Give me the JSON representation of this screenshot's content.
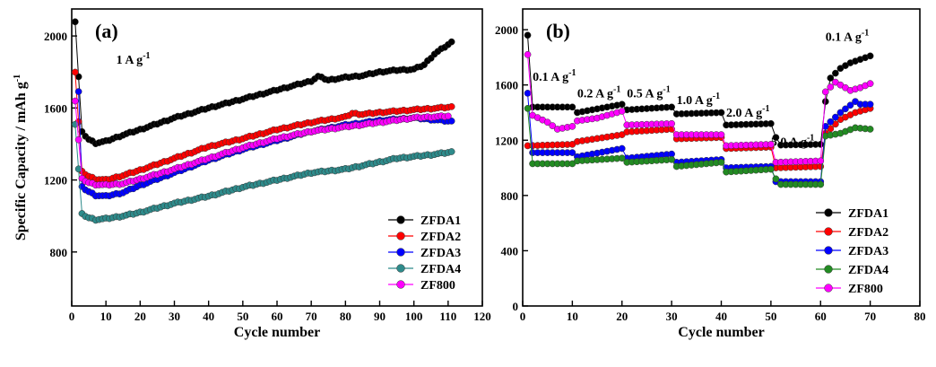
{
  "chart_data": [
    {
      "type": "scatter",
      "panel_label": "(a)",
      "xlabel": "Cycle number",
      "ylabel": "Specific Capacity / mAh g",
      "ylabel_sup": "-1",
      "xlim": [
        0,
        120
      ],
      "ylim": [
        500,
        2150
      ],
      "xticks": [
        0,
        10,
        20,
        30,
        40,
        50,
        60,
        70,
        80,
        90,
        100,
        110,
        120
      ],
      "yticks": [
        800,
        1200,
        1600,
        2000
      ],
      "annotations": [
        {
          "text": "1 A g",
          "sup": "-1",
          "x": 13,
          "y": 1845
        }
      ],
      "legend_position": "bottom-right",
      "series": [
        {
          "name": "ZFDA1",
          "color": "#000000",
          "points": [
            [
              1,
              2080
            ],
            [
              3,
              1465
            ],
            [
              5,
              1425
            ],
            [
              7,
              1405
            ],
            [
              10,
              1415
            ],
            [
              15,
              1450
            ],
            [
              20,
              1480
            ],
            [
              30,
              1545
            ],
            [
              40,
              1600
            ],
            [
              50,
              1650
            ],
            [
              60,
              1700
            ],
            [
              70,
              1750
            ],
            [
              72,
              1775
            ],
            [
              75,
              1755
            ],
            [
              80,
              1770
            ],
            [
              85,
              1780
            ],
            [
              90,
              1800
            ],
            [
              95,
              1810
            ],
            [
              100,
              1815
            ],
            [
              103,
              1840
            ],
            [
              106,
              1900
            ],
            [
              111,
              1965
            ]
          ]
        },
        {
          "name": "ZFDA2",
          "color": "#ff0000",
          "points": [
            [
              1,
              1800
            ],
            [
              3,
              1245
            ],
            [
              5,
              1220
            ],
            [
              7,
              1205
            ],
            [
              10,
              1200
            ],
            [
              15,
              1225
            ],
            [
              20,
              1255
            ],
            [
              30,
              1320
            ],
            [
              40,
              1385
            ],
            [
              50,
              1430
            ],
            [
              60,
              1480
            ],
            [
              70,
              1520
            ],
            [
              80,
              1550
            ],
            [
              82,
              1570
            ],
            [
              85,
              1565
            ],
            [
              90,
              1575
            ],
            [
              100,
              1590
            ],
            [
              111,
              1605
            ]
          ]
        },
        {
          "name": "ZFDA3",
          "color": "#0000ff",
          "points": [
            [
              2,
              1690
            ],
            [
              3,
              1160
            ],
            [
              5,
              1135
            ],
            [
              7,
              1115
            ],
            [
              10,
              1110
            ],
            [
              15,
              1130
            ],
            [
              20,
              1170
            ],
            [
              30,
              1240
            ],
            [
              40,
              1310
            ],
            [
              50,
              1370
            ],
            [
              60,
              1420
            ],
            [
              70,
              1470
            ],
            [
              80,
              1505
            ],
            [
              90,
              1530
            ],
            [
              100,
              1545
            ],
            [
              111,
              1525
            ]
          ]
        },
        {
          "name": "ZFDA4",
          "color": "#2e8b8b",
          "points": [
            [
              1,
              1510
            ],
            [
              3,
              1010
            ],
            [
              5,
              990
            ],
            [
              7,
              980
            ],
            [
              10,
              985
            ],
            [
              15,
              1000
            ],
            [
              20,
              1020
            ],
            [
              30,
              1070
            ],
            [
              40,
              1110
            ],
            [
              50,
              1160
            ],
            [
              60,
              1200
            ],
            [
              70,
              1240
            ],
            [
              80,
              1260
            ],
            [
              85,
              1280
            ],
            [
              90,
              1300
            ],
            [
              95,
              1320
            ],
            [
              100,
              1330
            ],
            [
              105,
              1340
            ],
            [
              111,
              1355
            ]
          ]
        },
        {
          "name": "ZF800",
          "color": "#ff00ff",
          "points": [
            [
              1,
              1640
            ],
            [
              3,
              1205
            ],
            [
              5,
              1185
            ],
            [
              7,
              1175
            ],
            [
              10,
              1172
            ],
            [
              15,
              1180
            ],
            [
              20,
              1205
            ],
            [
              30,
              1260
            ],
            [
              40,
              1320
            ],
            [
              50,
              1380
            ],
            [
              60,
              1430
            ],
            [
              70,
              1470
            ],
            [
              80,
              1495
            ],
            [
              90,
              1520
            ],
            [
              100,
              1545
            ],
            [
              110,
              1555
            ]
          ]
        }
      ]
    },
    {
      "type": "scatter",
      "panel_label": "(b)",
      "xlabel": "Cycle number",
      "xlim": [
        0,
        80
      ],
      "ylim": [
        0,
        2150
      ],
      "xticks": [
        0,
        10,
        20,
        30,
        40,
        50,
        60,
        70,
        80
      ],
      "yticks": [
        0,
        400,
        800,
        1200,
        1600,
        2000
      ],
      "annotations": [
        {
          "text": "0.1 A g",
          "sup": "-1",
          "x": 2,
          "y": 1630
        },
        {
          "text": "0.2 A g",
          "sup": "-1",
          "x": 11,
          "y": 1510
        },
        {
          "text": "0.5 A g",
          "sup": "-1",
          "x": 21,
          "y": 1510
        },
        {
          "text": "1.0 A g",
          "sup": "-1",
          "x": 31,
          "y": 1460
        },
        {
          "text": "2.0 A g",
          "sup": "-1",
          "x": 41,
          "y": 1370
        },
        {
          "text": "5.0 A g",
          "sup": "-1",
          "x": 50,
          "y": 1160
        },
        {
          "text": "0.1 A g",
          "sup": "-1",
          "x": 61,
          "y": 1920
        }
      ],
      "legend_position": "bottom-right",
      "series": [
        {
          "name": "ZFDA1",
          "color": "#000000",
          "steps": [
            [
              1,
              1960
            ],
            [
              2,
              1440
            ],
            [
              10,
              1440
            ],
            [
              11,
              1400
            ],
            [
              20,
              1460
            ],
            [
              21,
              1420
            ],
            [
              30,
              1440
            ],
            [
              31,
              1390
            ],
            [
              40,
              1400
            ],
            [
              41,
              1310
            ],
            [
              50,
              1320
            ],
            [
              51,
              1220
            ],
            [
              52,
              1165
            ],
            [
              60,
              1170
            ],
            [
              61,
              1480
            ],
            [
              62,
              1650
            ],
            [
              64,
              1720
            ],
            [
              66,
              1760
            ],
            [
              70,
              1810
            ]
          ]
        },
        {
          "name": "ZFDA2",
          "color": "#ff0000",
          "steps": [
            [
              1,
              1160
            ],
            [
              10,
              1170
            ],
            [
              11,
              1190
            ],
            [
              20,
              1240
            ],
            [
              21,
              1260
            ],
            [
              30,
              1280
            ],
            [
              31,
              1210
            ],
            [
              40,
              1220
            ],
            [
              41,
              1140
            ],
            [
              50,
              1150
            ],
            [
              51,
              1000
            ],
            [
              60,
              1010
            ],
            [
              61,
              1250
            ],
            [
              64,
              1350
            ],
            [
              67,
              1400
            ],
            [
              70,
              1430
            ]
          ]
        },
        {
          "name": "ZFDA3",
          "color": "#0000ff",
          "steps": [
            [
              1,
              1540
            ],
            [
              2,
              1110
            ],
            [
              10,
              1110
            ],
            [
              11,
              1080
            ],
            [
              20,
              1140
            ],
            [
              21,
              1070
            ],
            [
              30,
              1100
            ],
            [
              31,
              1040
            ],
            [
              40,
              1060
            ],
            [
              41,
              1000
            ],
            [
              50,
              1010
            ],
            [
              51,
              900
            ],
            [
              60,
              900
            ],
            [
              61,
              1300
            ],
            [
              64,
              1400
            ],
            [
              67,
              1480
            ],
            [
              68,
              1460
            ],
            [
              70,
              1460
            ]
          ]
        },
        {
          "name": "ZFDA4",
          "color": "#228b22",
          "steps": [
            [
              1,
              1430
            ],
            [
              2,
              1030
            ],
            [
              10,
              1030
            ],
            [
              11,
              1050
            ],
            [
              20,
              1070
            ],
            [
              21,
              1040
            ],
            [
              30,
              1060
            ],
            [
              31,
              1010
            ],
            [
              40,
              1040
            ],
            [
              41,
              970
            ],
            [
              50,
              990
            ],
            [
              51,
              920
            ],
            [
              52,
              880
            ],
            [
              60,
              880
            ],
            [
              61,
              1230
            ],
            [
              64,
              1250
            ],
            [
              67,
              1290
            ],
            [
              70,
              1280
            ]
          ]
        },
        {
          "name": "ZF800",
          "color": "#ff00ff",
          "steps": [
            [
              1,
              1820
            ],
            [
              2,
              1380
            ],
            [
              5,
              1330
            ],
            [
              7,
              1280
            ],
            [
              10,
              1300
            ],
            [
              11,
              1340
            ],
            [
              15,
              1360
            ],
            [
              20,
              1410
            ],
            [
              21,
              1310
            ],
            [
              30,
              1320
            ],
            [
              31,
              1240
            ],
            [
              40,
              1240
            ],
            [
              41,
              1160
            ],
            [
              50,
              1170
            ],
            [
              51,
              1040
            ],
            [
              60,
              1050
            ],
            [
              61,
              1550
            ],
            [
              63,
              1620
            ],
            [
              66,
              1560
            ],
            [
              68,
              1580
            ],
            [
              70,
              1610
            ]
          ]
        }
      ]
    }
  ]
}
